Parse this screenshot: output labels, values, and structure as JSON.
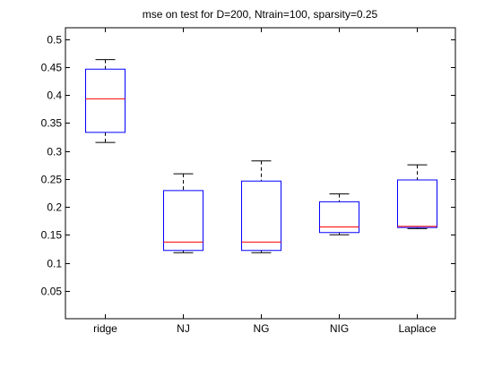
{
  "chart_data": {
    "type": "boxplot",
    "title": "mse on test for D=200, Ntrain=100, sparsity=0.25",
    "xlabel": "",
    "ylabel": "",
    "categories": [
      "ridge",
      "NJ",
      "NG",
      "NIG",
      "Laplace"
    ],
    "boxes": [
      {
        "whisker_low": 0.315,
        "q1": 0.333,
        "median": 0.393,
        "q3": 0.446,
        "whisker_high": 0.463
      },
      {
        "whisker_low": 0.118,
        "q1": 0.122,
        "median": 0.137,
        "q3": 0.229,
        "whisker_high": 0.259
      },
      {
        "whisker_low": 0.118,
        "q1": 0.122,
        "median": 0.137,
        "q3": 0.246,
        "whisker_high": 0.282
      },
      {
        "whisker_low": 0.15,
        "q1": 0.154,
        "median": 0.164,
        "q3": 0.209,
        "whisker_high": 0.223
      },
      {
        "whisker_low": 0.161,
        "q1": 0.163,
        "median": 0.165,
        "q3": 0.248,
        "whisker_high": 0.275
      }
    ],
    "ylim": [
      0,
      0.52
    ],
    "yticks": [
      0.05,
      0.1,
      0.15,
      0.2,
      0.25,
      0.3,
      0.35,
      0.4,
      0.45,
      0.5
    ],
    "ytick_labels": [
      "0.05",
      "0.1",
      "0.15",
      "0.2",
      "0.25",
      "0.3",
      "0.35",
      "0.4",
      "0.45",
      "0.5"
    ],
    "grid": false,
    "legend": "none",
    "colors": {
      "box": "#0000ff",
      "median": "#ff0000",
      "whisker": "#000000",
      "axes": "#000000"
    }
  }
}
